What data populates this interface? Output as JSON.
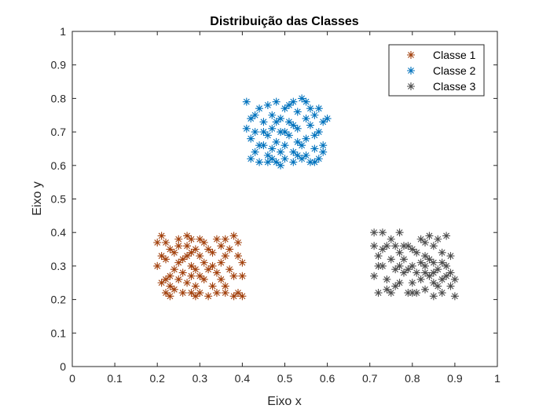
{
  "chart_data": {
    "type": "scatter",
    "title": "Distribuição das Classes",
    "xlabel": "Eixo x",
    "ylabel": "Eixo y",
    "xlim": [
      0,
      1
    ],
    "ylim": [
      0,
      1
    ],
    "xticks": [
      "0",
      "0.1",
      "0.2",
      "0.3",
      "0.4",
      "0.5",
      "0.6",
      "0.7",
      "0.8",
      "0.9",
      "1"
    ],
    "yticks": [
      "0",
      "0.1",
      "0.2",
      "0.3",
      "0.4",
      "0.5",
      "0.6",
      "0.7",
      "0.8",
      "0.9",
      "1"
    ],
    "grid": false,
    "legend": "top-right",
    "marker": "asterisk",
    "series": [
      {
        "name": "Classe 1",
        "color": "#A2410D",
        "points": [
          [
            0.21,
            0.39
          ],
          [
            0.22,
            0.37
          ],
          [
            0.2,
            0.37
          ],
          [
            0.23,
            0.35
          ],
          [
            0.21,
            0.33
          ],
          [
            0.22,
            0.32
          ],
          [
            0.2,
            0.3
          ],
          [
            0.22,
            0.26
          ],
          [
            0.21,
            0.25
          ],
          [
            0.23,
            0.24
          ],
          [
            0.22,
            0.22
          ],
          [
            0.23,
            0.21
          ],
          [
            0.24,
            0.23
          ],
          [
            0.24,
            0.29
          ],
          [
            0.24,
            0.34
          ],
          [
            0.25,
            0.36
          ],
          [
            0.25,
            0.31
          ],
          [
            0.25,
            0.26
          ],
          [
            0.26,
            0.22
          ],
          [
            0.27,
            0.39
          ],
          [
            0.27,
            0.36
          ],
          [
            0.27,
            0.33
          ],
          [
            0.26,
            0.28
          ],
          [
            0.27,
            0.25
          ],
          [
            0.28,
            0.38
          ],
          [
            0.28,
            0.34
          ],
          [
            0.28,
            0.3
          ],
          [
            0.28,
            0.27
          ],
          [
            0.28,
            0.22
          ],
          [
            0.29,
            0.35
          ],
          [
            0.29,
            0.29
          ],
          [
            0.29,
            0.24
          ],
          [
            0.3,
            0.38
          ],
          [
            0.3,
            0.33
          ],
          [
            0.3,
            0.27
          ],
          [
            0.3,
            0.22
          ],
          [
            0.31,
            0.37
          ],
          [
            0.31,
            0.31
          ],
          [
            0.31,
            0.26
          ],
          [
            0.32,
            0.21
          ],
          [
            0.32,
            0.29
          ],
          [
            0.33,
            0.34
          ],
          [
            0.33,
            0.24
          ],
          [
            0.34,
            0.28
          ],
          [
            0.34,
            0.22
          ],
          [
            0.35,
            0.36
          ],
          [
            0.35,
            0.31
          ],
          [
            0.35,
            0.26
          ],
          [
            0.36,
            0.38
          ],
          [
            0.36,
            0.33
          ],
          [
            0.36,
            0.22
          ],
          [
            0.37,
            0.29
          ],
          [
            0.37,
            0.35
          ],
          [
            0.38,
            0.39
          ],
          [
            0.38,
            0.27
          ],
          [
            0.38,
            0.21
          ],
          [
            0.39,
            0.33
          ],
          [
            0.39,
            0.37
          ],
          [
            0.39,
            0.22
          ],
          [
            0.4,
            0.31
          ],
          [
            0.4,
            0.27
          ],
          [
            0.4,
            0.21
          ],
          [
            0.26,
            0.32
          ],
          [
            0.33,
            0.3
          ],
          [
            0.32,
            0.35
          ],
          [
            0.23,
            0.27
          ],
          [
            0.29,
            0.21
          ],
          [
            0.36,
            0.24
          ],
          [
            0.25,
            0.38
          ],
          [
            0.34,
            0.38
          ]
        ]
      },
      {
        "name": "Classe 2",
        "color": "#0072BD",
        "points": [
          [
            0.41,
            0.79
          ],
          [
            0.42,
            0.74
          ],
          [
            0.41,
            0.71
          ],
          [
            0.43,
            0.75
          ],
          [
            0.42,
            0.68
          ],
          [
            0.43,
            0.64
          ],
          [
            0.42,
            0.62
          ],
          [
            0.44,
            0.61
          ],
          [
            0.43,
            0.7
          ],
          [
            0.44,
            0.77
          ],
          [
            0.45,
            0.73
          ],
          [
            0.45,
            0.66
          ],
          [
            0.46,
            0.78
          ],
          [
            0.46,
            0.69
          ],
          [
            0.46,
            0.63
          ],
          [
            0.47,
            0.75
          ],
          [
            0.47,
            0.71
          ],
          [
            0.47,
            0.62
          ],
          [
            0.48,
            0.79
          ],
          [
            0.48,
            0.67
          ],
          [
            0.48,
            0.61
          ],
          [
            0.49,
            0.74
          ],
          [
            0.49,
            0.7
          ],
          [
            0.49,
            0.64
          ],
          [
            0.5,
            0.77
          ],
          [
            0.5,
            0.66
          ],
          [
            0.5,
            0.62
          ],
          [
            0.51,
            0.73
          ],
          [
            0.51,
            0.69
          ],
          [
            0.52,
            0.79
          ],
          [
            0.52,
            0.64
          ],
          [
            0.52,
            0.61
          ],
          [
            0.53,
            0.76
          ],
          [
            0.53,
            0.71
          ],
          [
            0.53,
            0.67
          ],
          [
            0.54,
            0.8
          ],
          [
            0.54,
            0.62
          ],
          [
            0.55,
            0.74
          ],
          [
            0.55,
            0.68
          ],
          [
            0.55,
            0.63
          ],
          [
            0.56,
            0.77
          ],
          [
            0.56,
            0.72
          ],
          [
            0.57,
            0.65
          ],
          [
            0.57,
            0.61
          ],
          [
            0.57,
            0.75
          ],
          [
            0.58,
            0.7
          ],
          [
            0.58,
            0.62
          ],
          [
            0.59,
            0.66
          ],
          [
            0.59,
            0.73
          ],
          [
            0.6,
            0.74
          ],
          [
            0.59,
            0.64
          ],
          [
            0.58,
            0.77
          ],
          [
            0.44,
            0.66
          ],
          [
            0.47,
            0.65
          ],
          [
            0.51,
            0.78
          ],
          [
            0.54,
            0.66
          ],
          [
            0.56,
            0.61
          ],
          [
            0.49,
            0.6
          ],
          [
            0.45,
            0.7
          ],
          [
            0.52,
            0.72
          ],
          [
            0.48,
            0.73
          ],
          [
            0.5,
            0.7
          ],
          [
            0.46,
            0.61
          ],
          [
            0.53,
            0.63
          ],
          [
            0.55,
            0.79
          ],
          [
            0.57,
            0.69
          ]
        ]
      },
      {
        "name": "Classe 3",
        "color": "#4D4D4D",
        "points": [
          [
            0.71,
            0.4
          ],
          [
            0.71,
            0.36
          ],
          [
            0.72,
            0.33
          ],
          [
            0.71,
            0.27
          ],
          [
            0.72,
            0.22
          ],
          [
            0.73,
            0.4
          ],
          [
            0.73,
            0.35
          ],
          [
            0.73,
            0.3
          ],
          [
            0.74,
            0.26
          ],
          [
            0.74,
            0.23
          ],
          [
            0.75,
            0.38
          ],
          [
            0.75,
            0.32
          ],
          [
            0.75,
            0.22
          ],
          [
            0.76,
            0.36
          ],
          [
            0.76,
            0.29
          ],
          [
            0.77,
            0.4
          ],
          [
            0.77,
            0.34
          ],
          [
            0.77,
            0.25
          ],
          [
            0.78,
            0.32
          ],
          [
            0.78,
            0.28
          ],
          [
            0.79,
            0.36
          ],
          [
            0.79,
            0.22
          ],
          [
            0.8,
            0.35
          ],
          [
            0.8,
            0.3
          ],
          [
            0.8,
            0.25
          ],
          [
            0.81,
            0.34
          ],
          [
            0.81,
            0.28
          ],
          [
            0.81,
            0.22
          ],
          [
            0.82,
            0.31
          ],
          [
            0.82,
            0.26
          ],
          [
            0.83,
            0.37
          ],
          [
            0.83,
            0.33
          ],
          [
            0.83,
            0.28
          ],
          [
            0.83,
            0.23
          ],
          [
            0.84,
            0.39
          ],
          [
            0.84,
            0.27
          ],
          [
            0.85,
            0.36
          ],
          [
            0.85,
            0.31
          ],
          [
            0.85,
            0.25
          ],
          [
            0.85,
            0.21
          ],
          [
            0.86,
            0.29
          ],
          [
            0.86,
            0.38
          ],
          [
            0.87,
            0.34
          ],
          [
            0.87,
            0.26
          ],
          [
            0.87,
            0.22
          ],
          [
            0.88,
            0.3
          ],
          [
            0.88,
            0.39
          ],
          [
            0.89,
            0.28
          ],
          [
            0.89,
            0.24
          ],
          [
            0.9,
            0.26
          ],
          [
            0.9,
            0.21
          ],
          [
            0.89,
            0.33
          ],
          [
            0.72,
            0.3
          ],
          [
            0.76,
            0.24
          ],
          [
            0.78,
            0.36
          ],
          [
            0.79,
            0.29
          ],
          [
            0.82,
            0.38
          ],
          [
            0.84,
            0.32
          ],
          [
            0.86,
            0.24
          ],
          [
            0.88,
            0.27
          ],
          [
            0.74,
            0.36
          ],
          [
            0.8,
            0.22
          ],
          [
            0.83,
            0.3
          ],
          [
            0.87,
            0.31
          ],
          [
            0.77,
            0.3
          ],
          [
            0.85,
            0.28
          ]
        ]
      }
    ]
  }
}
